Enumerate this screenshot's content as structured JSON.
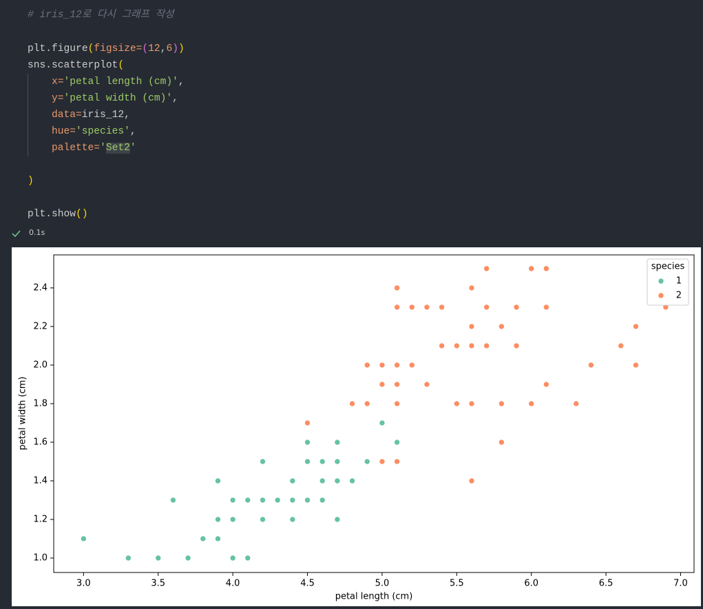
{
  "code": {
    "lines": [
      [
        "# iris_12로 다시 그래프 작성"
      ],
      [
        "plt.figure",
        "(",
        "figsize=",
        "(",
        "12",
        ",",
        "6",
        ")",
        ")"
      ],
      [
        "sns.scatterplot",
        "("
      ],
      [
        "x=",
        "'petal length (cm)'",
        ","
      ],
      [
        "y=",
        "'petal width (cm)'",
        ","
      ],
      [
        "data=",
        "iris_12,"
      ],
      [
        "hue=",
        "'species'",
        ","
      ],
      [
        "palette=",
        "'",
        "Set2",
        "'"
      ],
      [
        ")"
      ],
      [
        "plt.show",
        "()"
      ]
    ]
  },
  "execution": {
    "time": "0.1s"
  },
  "chart_data": {
    "type": "scatter",
    "x_label": "petal length (cm)",
    "y_label": "petal width (cm)",
    "legend_title": "species",
    "legend_position": "upper right",
    "xlim": [
      2.8,
      7.09
    ],
    "ylim": [
      0.925,
      2.571
    ],
    "xticks": [
      {
        "value": 3,
        "label": "3.0"
      },
      {
        "value": 3.5,
        "label": "3.5"
      },
      {
        "value": 4,
        "label": "4.0"
      },
      {
        "value": 4.5,
        "label": "4.5"
      },
      {
        "value": 5,
        "label": "5.0"
      },
      {
        "value": 5.5,
        "label": "5.5"
      },
      {
        "value": 6,
        "label": "6.0"
      },
      {
        "value": 6.5,
        "label": "6.5"
      },
      {
        "value": 7,
        "label": "7.0"
      }
    ],
    "yticks": [
      {
        "value": 1,
        "label": "1.0"
      },
      {
        "value": 1.2,
        "label": "1.2"
      },
      {
        "value": 1.4,
        "label": "1.4"
      },
      {
        "value": 1.6,
        "label": "1.6"
      },
      {
        "value": 1.8,
        "label": "1.8"
      },
      {
        "value": 2,
        "label": "2.0"
      },
      {
        "value": 2.2,
        "label": "2.2"
      },
      {
        "value": 2.4,
        "label": "2.4"
      }
    ],
    "series": [
      {
        "name": "1",
        "color": "#66c2a5",
        "x": [
          3.0,
          3.3,
          3.5,
          3.7,
          3.6,
          3.8,
          3.9,
          3.9,
          3.9,
          4.0,
          4.0,
          4.0,
          4.1,
          4.1,
          4.2,
          4.2,
          4.2,
          4.3,
          4.4,
          4.4,
          4.4,
          4.5,
          4.5,
          4.5,
          4.6,
          4.6,
          4.6,
          4.7,
          4.7,
          4.7,
          4.7,
          4.8,
          4.9,
          5.0,
          5.1
        ],
        "values": [
          1.1,
          1.0,
          1.0,
          1.0,
          1.3,
          1.1,
          1.4,
          1.2,
          1.1,
          1.3,
          1.2,
          1.0,
          1.3,
          1.0,
          1.5,
          1.3,
          1.2,
          1.3,
          1.4,
          1.3,
          1.2,
          1.6,
          1.5,
          1.3,
          1.5,
          1.4,
          1.3,
          1.6,
          1.5,
          1.4,
          1.2,
          1.4,
          1.5,
          1.7,
          1.6
        ]
      },
      {
        "name": "2",
        "color": "#fc8d62",
        "x": [
          5.7,
          6.0,
          6.1,
          5.1,
          5.6,
          5.1,
          5.2,
          5.3,
          5.4,
          5.7,
          5.9,
          6.1,
          6.9,
          5.6,
          5.8,
          6.7,
          5.4,
          5.5,
          5.6,
          5.7,
          5.9,
          6.6,
          4.9,
          5.0,
          5.1,
          5.2,
          6.4,
          6.7,
          5.0,
          5.1,
          5.3,
          6.1,
          4.8,
          4.9,
          5.1,
          5.5,
          5.6,
          5.8,
          6.0,
          6.3,
          4.5,
          5.8,
          5.0,
          5.1,
          5.6
        ],
        "values": [
          2.5,
          2.5,
          2.5,
          2.4,
          2.4,
          2.3,
          2.3,
          2.3,
          2.3,
          2.3,
          2.3,
          2.3,
          2.3,
          2.2,
          2.2,
          2.2,
          2.1,
          2.1,
          2.1,
          2.1,
          2.1,
          2.1,
          2.0,
          2.0,
          2.0,
          2.0,
          2.0,
          2.0,
          1.9,
          1.9,
          1.9,
          1.9,
          1.8,
          1.8,
          1.8,
          1.8,
          1.8,
          1.8,
          1.8,
          1.8,
          1.7,
          1.6,
          1.5,
          1.5,
          1.4
        ]
      }
    ]
  }
}
